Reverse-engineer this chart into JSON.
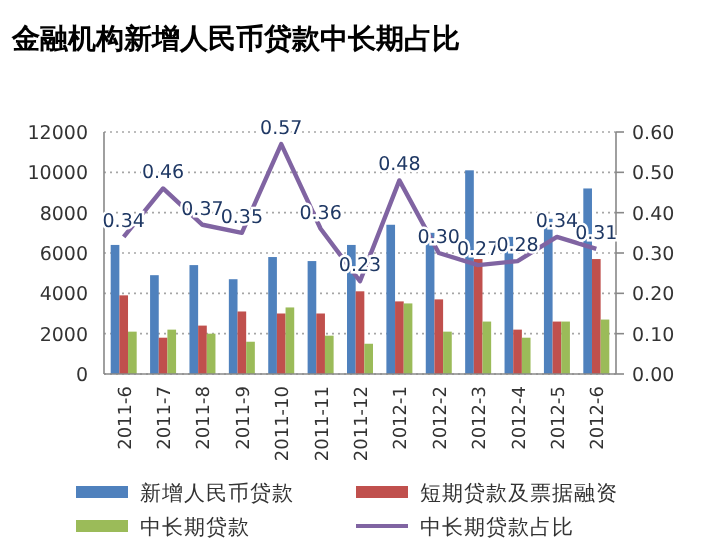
{
  "chart_data": {
    "type": "bar",
    "title": "金融机构新增人民币贷款中长期占比",
    "categories": [
      "2011-6",
      "2011-7",
      "2011-8",
      "2011-9",
      "2011-10",
      "2011-11",
      "2011-12",
      "2012-1",
      "2012-2",
      "2012-3",
      "2012-4",
      "2012-5",
      "2012-6"
    ],
    "series": [
      {
        "name": "新增人民币贷款",
        "color": "#4f81bd",
        "values": [
          6400,
          4900,
          5400,
          4700,
          5800,
          5600,
          6400,
          7400,
          7000,
          10100,
          6800,
          7700,
          9200
        ]
      },
      {
        "name": "短期贷款及票据融资",
        "color": "#c0504d",
        "values": [
          3900,
          1800,
          2400,
          3100,
          3000,
          3000,
          4100,
          3600,
          3700,
          5700,
          2200,
          2600,
          5700
        ]
      },
      {
        "name": "中长期贷款",
        "color": "#9bbb59",
        "values": [
          2100,
          2200,
          2000,
          1600,
          3300,
          1900,
          1500,
          3500,
          2100,
          2600,
          1800,
          2600,
          2700
        ]
      },
      {
        "name": "中长期贷款占比",
        "color": "#8064a2",
        "type": "line",
        "axis": "y2",
        "values": [
          0.34,
          0.46,
          0.37,
          0.35,
          0.57,
          0.36,
          0.23,
          0.48,
          0.3,
          0.27,
          0.28,
          0.34,
          0.31
        ],
        "value_labels": [
          "0.34",
          "0.46",
          "0.37",
          "0.35",
          "0.57",
          "0.36",
          "0.23",
          "0.48",
          "0.30",
          "0.27",
          "0.28",
          "0.34",
          "0.31"
        ]
      }
    ],
    "ylim": [
      0,
      12000
    ],
    "yticks": [
      0,
      2000,
      4000,
      6000,
      8000,
      10000,
      12000
    ],
    "y2lim": [
      0,
      0.6
    ],
    "y2ticks": [
      {
        "value": 0,
        "label": "0.00"
      },
      {
        "value": 0.1,
        "label": "0.10"
      },
      {
        "value": 0.2,
        "label": "0.20"
      },
      {
        "value": 0.3,
        "label": "0.30"
      },
      {
        "value": 0.4,
        "label": "0.40"
      },
      {
        "value": 0.5,
        "label": "0.50"
      },
      {
        "value": 0.6,
        "label": "0.60"
      }
    ],
    "grid": "y",
    "legend": "bottom"
  }
}
